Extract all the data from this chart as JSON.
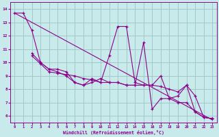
{
  "xlabel": "Windchill (Refroidissement éolien,°C)",
  "bg_color": "#c8eaea",
  "line_color": "#8b008b",
  "grid_color": "#a0c8c8",
  "lines": [
    [
      0,
      13.7,
      23,
      5.7
    ],
    [
      0,
      13.7,
      1,
      13.7,
      2,
      12.4,
      3,
      10.0,
      4,
      9.5,
      5,
      9.3,
      6,
      9.0,
      7,
      8.5,
      8,
      8.3,
      9,
      8.8,
      10,
      8.5,
      11,
      10.5,
      12,
      12.7,
      13,
      12.7,
      14,
      8.5,
      15,
      8.3,
      16,
      8.3,
      17,
      9.0,
      18,
      7.3,
      19,
      7.5,
      20,
      8.3,
      21,
      6.3,
      22,
      5.9,
      23,
      5.8
    ],
    [
      2,
      10.7,
      3,
      10.0,
      4,
      9.5,
      5,
      9.5,
      6,
      9.3,
      7,
      8.5,
      8,
      8.3,
      9,
      8.5,
      10,
      8.8,
      11,
      8.5,
      12,
      8.5,
      13,
      8.3,
      14,
      8.3,
      15,
      11.5,
      16,
      6.5,
      17,
      7.3,
      18,
      7.3,
      19,
      7.0,
      20,
      7.0,
      21,
      6.3,
      22,
      5.9,
      23,
      5.8
    ],
    [
      2,
      10.5,
      3,
      9.9,
      4,
      9.3,
      5,
      9.2,
      6,
      9.1,
      7,
      9.0,
      8,
      8.8,
      9,
      8.7,
      10,
      8.5,
      11,
      8.5,
      12,
      8.5,
      13,
      8.3,
      14,
      8.3,
      15,
      8.3,
      16,
      8.3,
      17,
      8.2,
      18,
      8.0,
      19,
      7.8,
      20,
      8.3,
      21,
      7.5,
      22,
      5.9,
      23,
      5.8
    ]
  ],
  "xlim": [
    -0.5,
    23.5
  ],
  "ylim": [
    5.5,
    14.5
  ],
  "xticks": [
    0,
    1,
    2,
    3,
    4,
    5,
    6,
    7,
    8,
    9,
    10,
    11,
    12,
    13,
    14,
    15,
    16,
    17,
    18,
    19,
    20,
    21,
    22,
    23
  ],
  "yticks": [
    6,
    7,
    8,
    9,
    10,
    11,
    12,
    13,
    14
  ],
  "figsize": [
    3.2,
    2.0
  ],
  "dpi": 100
}
